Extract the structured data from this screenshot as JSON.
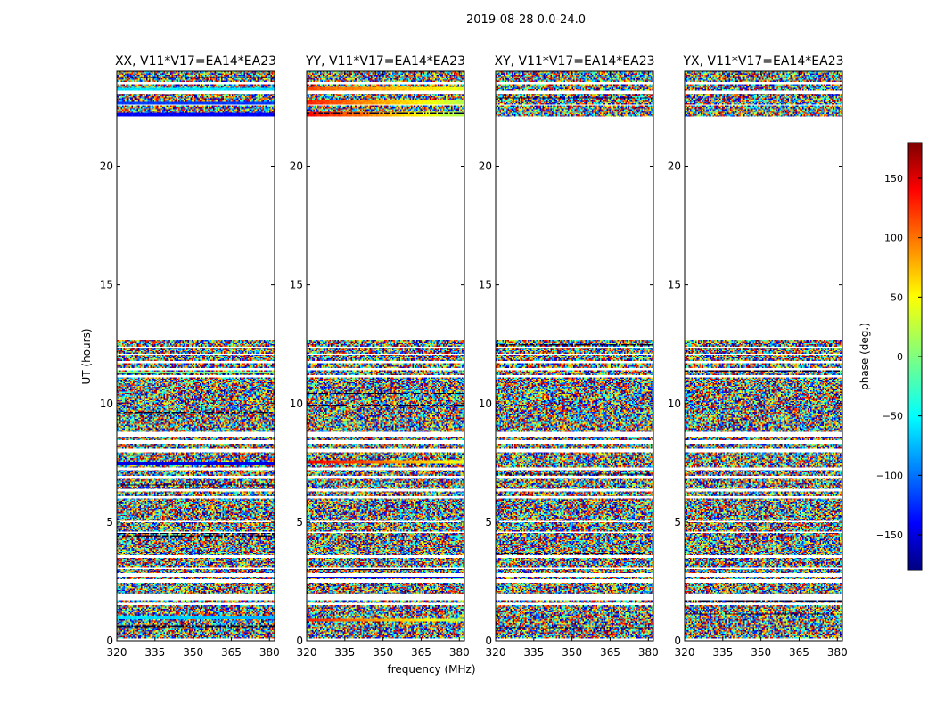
{
  "figure": {
    "suptitle": "2019-08-28 0.0-24.0",
    "xlabel": "frequency (MHz)",
    "ylabel": "UT (hours)"
  },
  "chart_data": {
    "type": "heatmap",
    "x_range": [
      320,
      382
    ],
    "y_range": [
      0,
      24
    ],
    "x_ticks": [
      320,
      335,
      350,
      365,
      380
    ],
    "y_ticks": [
      0,
      5,
      10,
      15,
      20
    ],
    "panels": [
      {
        "title": "XX, V11*V17=EA14*EA23",
        "style": "xx"
      },
      {
        "title": "YY, V11*V17=EA14*EA23",
        "style": "yy"
      },
      {
        "title": "XY, V11*V17=EA14*EA23",
        "style": "xy"
      },
      {
        "title": "YX, V11*V17=EA14*EA23",
        "style": "yx"
      }
    ],
    "data_gaps_hours": [
      [
        0.0,
        0.12
      ],
      [
        1.5,
        1.62
      ],
      [
        1.72,
        1.95
      ],
      [
        2.45,
        2.62
      ],
      [
        2.7,
        2.85
      ],
      [
        3.05,
        3.12
      ],
      [
        3.5,
        3.58
      ],
      [
        4.55,
        4.62
      ],
      [
        5.0,
        5.06
      ],
      [
        6.0,
        6.08
      ],
      [
        6.28,
        6.42
      ],
      [
        6.85,
        6.93
      ],
      [
        7.18,
        7.3
      ],
      [
        7.95,
        8.08
      ],
      [
        8.3,
        8.45
      ],
      [
        8.62,
        8.78
      ],
      [
        11.1,
        11.22
      ],
      [
        11.38,
        11.5
      ],
      [
        11.72,
        11.82
      ],
      [
        12.05,
        12.12
      ],
      [
        12.35,
        12.42
      ],
      [
        12.68,
        22.1
      ],
      [
        22.55,
        22.62
      ],
      [
        23.05,
        23.18
      ],
      [
        23.45,
        23.55
      ]
    ],
    "colorbar": {
      "label": "phase (deg.)",
      "range": [
        -180,
        180
      ],
      "ticks": [
        -150,
        -100,
        -50,
        0,
        50,
        100,
        150
      ],
      "colormap": "jet"
    }
  }
}
